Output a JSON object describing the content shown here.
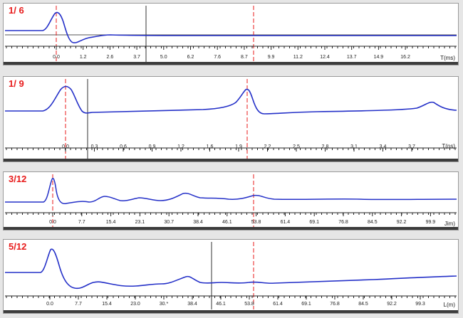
{
  "colors": {
    "trace": "#2430c8",
    "cursor_red": "#e81b1b",
    "cursor_dark": "#333333",
    "axis": "#222222"
  },
  "panels": [
    {
      "label": "1/ 6",
      "axis_unit": "T(ms)",
      "ticks": [
        "0.0",
        "1.2",
        "2.6",
        "3.7",
        "5.0",
        "6.2",
        "7.6",
        "8.7",
        "9.9",
        "11.2",
        "12.4",
        "13.7",
        "14.9",
        "16.2"
      ]
    },
    {
      "label": "1/ 9",
      "axis_unit": "T(ns)",
      "ticks": [
        "0.0",
        "0.3",
        "0.6",
        "0.9",
        "1.2",
        "1.6",
        "1.9",
        "2.2",
        "2.5",
        "2.8",
        "3.1",
        "3.4",
        "3.7"
      ]
    },
    {
      "label": "3/12",
      "axis_unit": "Jim)",
      "ticks": [
        "0.0",
        "7.7",
        "15.4",
        "23.1",
        "30.7",
        "38.4",
        "46.1",
        "53.8",
        "61.4",
        "69.1",
        "76.8",
        "84.5",
        "92.2",
        "99.9"
      ]
    },
    {
      "label": "5/12",
      "axis_unit": "L(m)",
      "ticks": [
        "0.0",
        "7.7",
        "15.4",
        "23.0",
        "30.*",
        "38.4",
        "46.1",
        "53.8",
        "61.4",
        "69.1",
        "76.8",
        "84.5",
        "92.2",
        "99.3"
      ]
    }
  ]
}
